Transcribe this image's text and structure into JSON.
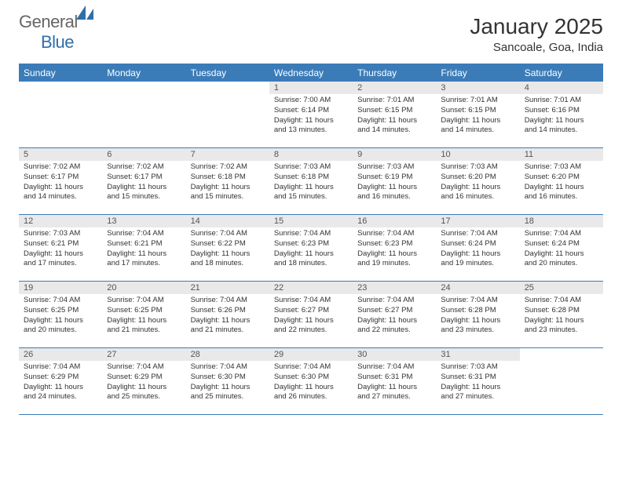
{
  "logo": {
    "textA": "General",
    "textB": "Blue"
  },
  "title": "January 2025",
  "location": "Sancoale, Goa, India",
  "colors": {
    "header_bar": "#3b7cb8",
    "day_header_bg": "#e9e9e9",
    "logo_blue": "#2f6fa8",
    "text": "#333333"
  },
  "dow": [
    "Sunday",
    "Monday",
    "Tuesday",
    "Wednesday",
    "Thursday",
    "Friday",
    "Saturday"
  ],
  "weeks": [
    [
      {
        "n": "",
        "sr": "",
        "ss": "",
        "dl": ""
      },
      {
        "n": "",
        "sr": "",
        "ss": "",
        "dl": ""
      },
      {
        "n": "",
        "sr": "",
        "ss": "",
        "dl": ""
      },
      {
        "n": "1",
        "sr": "Sunrise: 7:00 AM",
        "ss": "Sunset: 6:14 PM",
        "dl": "Daylight: 11 hours and 13 minutes."
      },
      {
        "n": "2",
        "sr": "Sunrise: 7:01 AM",
        "ss": "Sunset: 6:15 PM",
        "dl": "Daylight: 11 hours and 14 minutes."
      },
      {
        "n": "3",
        "sr": "Sunrise: 7:01 AM",
        "ss": "Sunset: 6:15 PM",
        "dl": "Daylight: 11 hours and 14 minutes."
      },
      {
        "n": "4",
        "sr": "Sunrise: 7:01 AM",
        "ss": "Sunset: 6:16 PM",
        "dl": "Daylight: 11 hours and 14 minutes."
      }
    ],
    [
      {
        "n": "5",
        "sr": "Sunrise: 7:02 AM",
        "ss": "Sunset: 6:17 PM",
        "dl": "Daylight: 11 hours and 14 minutes."
      },
      {
        "n": "6",
        "sr": "Sunrise: 7:02 AM",
        "ss": "Sunset: 6:17 PM",
        "dl": "Daylight: 11 hours and 15 minutes."
      },
      {
        "n": "7",
        "sr": "Sunrise: 7:02 AM",
        "ss": "Sunset: 6:18 PM",
        "dl": "Daylight: 11 hours and 15 minutes."
      },
      {
        "n": "8",
        "sr": "Sunrise: 7:03 AM",
        "ss": "Sunset: 6:18 PM",
        "dl": "Daylight: 11 hours and 15 minutes."
      },
      {
        "n": "9",
        "sr": "Sunrise: 7:03 AM",
        "ss": "Sunset: 6:19 PM",
        "dl": "Daylight: 11 hours and 16 minutes."
      },
      {
        "n": "10",
        "sr": "Sunrise: 7:03 AM",
        "ss": "Sunset: 6:20 PM",
        "dl": "Daylight: 11 hours and 16 minutes."
      },
      {
        "n": "11",
        "sr": "Sunrise: 7:03 AM",
        "ss": "Sunset: 6:20 PM",
        "dl": "Daylight: 11 hours and 16 minutes."
      }
    ],
    [
      {
        "n": "12",
        "sr": "Sunrise: 7:03 AM",
        "ss": "Sunset: 6:21 PM",
        "dl": "Daylight: 11 hours and 17 minutes."
      },
      {
        "n": "13",
        "sr": "Sunrise: 7:04 AM",
        "ss": "Sunset: 6:21 PM",
        "dl": "Daylight: 11 hours and 17 minutes."
      },
      {
        "n": "14",
        "sr": "Sunrise: 7:04 AM",
        "ss": "Sunset: 6:22 PM",
        "dl": "Daylight: 11 hours and 18 minutes."
      },
      {
        "n": "15",
        "sr": "Sunrise: 7:04 AM",
        "ss": "Sunset: 6:23 PM",
        "dl": "Daylight: 11 hours and 18 minutes."
      },
      {
        "n": "16",
        "sr": "Sunrise: 7:04 AM",
        "ss": "Sunset: 6:23 PM",
        "dl": "Daylight: 11 hours and 19 minutes."
      },
      {
        "n": "17",
        "sr": "Sunrise: 7:04 AM",
        "ss": "Sunset: 6:24 PM",
        "dl": "Daylight: 11 hours and 19 minutes."
      },
      {
        "n": "18",
        "sr": "Sunrise: 7:04 AM",
        "ss": "Sunset: 6:24 PM",
        "dl": "Daylight: 11 hours and 20 minutes."
      }
    ],
    [
      {
        "n": "19",
        "sr": "Sunrise: 7:04 AM",
        "ss": "Sunset: 6:25 PM",
        "dl": "Daylight: 11 hours and 20 minutes."
      },
      {
        "n": "20",
        "sr": "Sunrise: 7:04 AM",
        "ss": "Sunset: 6:25 PM",
        "dl": "Daylight: 11 hours and 21 minutes."
      },
      {
        "n": "21",
        "sr": "Sunrise: 7:04 AM",
        "ss": "Sunset: 6:26 PM",
        "dl": "Daylight: 11 hours and 21 minutes."
      },
      {
        "n": "22",
        "sr": "Sunrise: 7:04 AM",
        "ss": "Sunset: 6:27 PM",
        "dl": "Daylight: 11 hours and 22 minutes."
      },
      {
        "n": "23",
        "sr": "Sunrise: 7:04 AM",
        "ss": "Sunset: 6:27 PM",
        "dl": "Daylight: 11 hours and 22 minutes."
      },
      {
        "n": "24",
        "sr": "Sunrise: 7:04 AM",
        "ss": "Sunset: 6:28 PM",
        "dl": "Daylight: 11 hours and 23 minutes."
      },
      {
        "n": "25",
        "sr": "Sunrise: 7:04 AM",
        "ss": "Sunset: 6:28 PM",
        "dl": "Daylight: 11 hours and 23 minutes."
      }
    ],
    [
      {
        "n": "26",
        "sr": "Sunrise: 7:04 AM",
        "ss": "Sunset: 6:29 PM",
        "dl": "Daylight: 11 hours and 24 minutes."
      },
      {
        "n": "27",
        "sr": "Sunrise: 7:04 AM",
        "ss": "Sunset: 6:29 PM",
        "dl": "Daylight: 11 hours and 25 minutes."
      },
      {
        "n": "28",
        "sr": "Sunrise: 7:04 AM",
        "ss": "Sunset: 6:30 PM",
        "dl": "Daylight: 11 hours and 25 minutes."
      },
      {
        "n": "29",
        "sr": "Sunrise: 7:04 AM",
        "ss": "Sunset: 6:30 PM",
        "dl": "Daylight: 11 hours and 26 minutes."
      },
      {
        "n": "30",
        "sr": "Sunrise: 7:04 AM",
        "ss": "Sunset: 6:31 PM",
        "dl": "Daylight: 11 hours and 27 minutes."
      },
      {
        "n": "31",
        "sr": "Sunrise: 7:03 AM",
        "ss": "Sunset: 6:31 PM",
        "dl": "Daylight: 11 hours and 27 minutes."
      },
      {
        "n": "",
        "sr": "",
        "ss": "",
        "dl": ""
      }
    ]
  ]
}
